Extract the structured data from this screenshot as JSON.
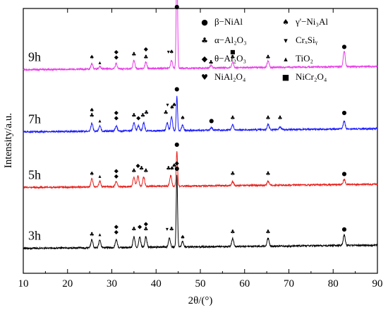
{
  "chart_data": {
    "type": "line",
    "xlabel": "2θ/(°)",
    "ylabel": "Intensity/a.u.",
    "xlim": [
      10,
      90
    ],
    "xticks": [
      "10",
      "20",
      "30",
      "40",
      "50",
      "60",
      "70",
      "80",
      "90"
    ],
    "y_ticks_shown": false,
    "grid": false,
    "legend_position": "top-right",
    "legend": [
      {
        "symbol": "●",
        "label": "β−NiAl"
      },
      {
        "symbol": "♠",
        "label": "γ'−Ni₃Al"
      },
      {
        "symbol": "♣",
        "label": "α−Al₂O₃"
      },
      {
        "symbol": "▾",
        "label": "CrₓSiᵧ"
      },
      {
        "symbol": "◆",
        "label": "θ−Al₂O₃"
      },
      {
        "symbol": "▴",
        "label": "TiO₂"
      },
      {
        "symbol": "♥",
        "label": "NiAl₂O₄"
      },
      {
        "symbol": "■",
        "label": "NiCr₂O₄"
      }
    ],
    "series": [
      {
        "name": "3h",
        "color": "#000000",
        "baseline": 0.1,
        "peaks": [
          [
            25.5,
            0.03
          ],
          [
            27.3,
            0.03
          ],
          [
            31.0,
            0.03
          ],
          [
            35.0,
            0.04
          ],
          [
            36.3,
            0.04
          ],
          [
            37.7,
            0.04
          ],
          [
            43.0,
            0.035
          ],
          [
            44.7,
            0.27
          ],
          [
            46.0,
            0.02
          ],
          [
            57.3,
            0.03
          ],
          [
            65.3,
            0.03
          ],
          [
            82.5,
            0.04
          ]
        ],
        "markers": [
          {
            "x": 25.5,
            "y": 0.14,
            "symbol": "♣"
          },
          {
            "x": 27.3,
            "y": 0.14,
            "symbol": "▴"
          },
          {
            "x": 31.0,
            "y": 0.15,
            "symbol": "◆"
          },
          {
            "x": 31.0,
            "y": 0.17,
            "symbol": "◆"
          },
          {
            "x": 35.0,
            "y": 0.16,
            "symbol": "♣"
          },
          {
            "x": 36.3,
            "y": 0.17,
            "symbol": "◆"
          },
          {
            "x": 37.7,
            "y": 0.16,
            "symbol": "♣"
          },
          {
            "x": 37.7,
            "y": 0.18,
            "symbol": "◆"
          },
          {
            "x": 42.5,
            "y": 0.16,
            "symbol": "▾"
          },
          {
            "x": 43.5,
            "y": 0.16,
            "symbol": "♣"
          },
          {
            "x": 44.7,
            "y": 0.39,
            "symbol": "●"
          },
          {
            "x": 44.7,
            "y": 0.41,
            "symbol": "◆"
          },
          {
            "x": 46.0,
            "y": 0.13,
            "symbol": "♠"
          },
          {
            "x": 57.3,
            "y": 0.15,
            "symbol": "♣"
          },
          {
            "x": 65.3,
            "y": 0.15,
            "symbol": "♣"
          },
          {
            "x": 82.5,
            "y": 0.16,
            "symbol": "●"
          }
        ]
      },
      {
        "name": "5h",
        "color": "#e8201c",
        "baseline": 0.33,
        "peaks": [
          [
            25.5,
            0.03
          ],
          [
            27.3,
            0.02
          ],
          [
            31.0,
            0.02
          ],
          [
            35.0,
            0.035
          ],
          [
            35.9,
            0.04
          ],
          [
            37.2,
            0.035
          ],
          [
            43.3,
            0.04
          ],
          [
            44.7,
            0.13
          ],
          [
            57.3,
            0.015
          ],
          [
            65.3,
            0.015
          ],
          [
            82.5,
            0.02
          ]
        ],
        "markers": [
          {
            "x": 25.5,
            "y": 0.37,
            "symbol": "♠"
          },
          {
            "x": 27.3,
            "y": 0.36,
            "symbol": "▴"
          },
          {
            "x": 31.0,
            "y": 0.36,
            "symbol": "◆"
          },
          {
            "x": 31.0,
            "y": 0.38,
            "symbol": "◆"
          },
          {
            "x": 35.0,
            "y": 0.38,
            "symbol": "♣"
          },
          {
            "x": 35.9,
            "y": 0.4,
            "symbol": "◆"
          },
          {
            "x": 36.7,
            "y": 0.39,
            "symbol": "♣"
          },
          {
            "x": 37.7,
            "y": 0.38,
            "symbol": "♣"
          },
          {
            "x": 42.8,
            "y": 0.39,
            "symbol": "♣"
          },
          {
            "x": 43.6,
            "y": 0.39,
            "symbol": "♠"
          },
          {
            "x": 44.1,
            "y": 0.4,
            "symbol": "♠"
          },
          {
            "x": 44.7,
            "y": 0.48,
            "symbol": "●"
          },
          {
            "x": 57.3,
            "y": 0.37,
            "symbol": "♣"
          },
          {
            "x": 65.3,
            "y": 0.37,
            "symbol": "♣"
          },
          {
            "x": 82.5,
            "y": 0.37,
            "symbol": "●"
          }
        ]
      },
      {
        "name": "7h",
        "color": "#1a1aff",
        "baseline": 0.54,
        "peaks": [
          [
            25.5,
            0.03
          ],
          [
            27.3,
            0.02
          ],
          [
            31.0,
            0.02
          ],
          [
            35.0,
            0.03
          ],
          [
            36.0,
            0.02
          ],
          [
            37.2,
            0.03
          ],
          [
            42.5,
            0.03
          ],
          [
            43.5,
            0.05
          ],
          [
            44.7,
            0.13
          ],
          [
            46.0,
            0.02
          ],
          [
            52.5,
            0.01
          ],
          [
            57.3,
            0.02
          ],
          [
            65.3,
            0.02
          ],
          [
            68.0,
            0.01
          ],
          [
            82.5,
            0.03
          ]
        ],
        "markers": [
          {
            "x": 25.5,
            "y": 0.59,
            "symbol": "♣"
          },
          {
            "x": 25.5,
            "y": 0.61,
            "symbol": "♠"
          },
          {
            "x": 27.3,
            "y": 0.57,
            "symbol": "▴"
          },
          {
            "x": 31.0,
            "y": 0.58,
            "symbol": "◆"
          },
          {
            "x": 31.0,
            "y": 0.6,
            "symbol": "◆"
          },
          {
            "x": 35.0,
            "y": 0.59,
            "symbol": "♣"
          },
          {
            "x": 36.0,
            "y": 0.58,
            "symbol": "◆"
          },
          {
            "x": 37.0,
            "y": 0.59,
            "symbol": "♣"
          },
          {
            "x": 37.8,
            "y": 0.6,
            "symbol": "♣"
          },
          {
            "x": 42.2,
            "y": 0.6,
            "symbol": "♣"
          },
          {
            "x": 42.6,
            "y": 0.63,
            "symbol": "▾"
          },
          {
            "x": 43.6,
            "y": 0.62,
            "symbol": "♠"
          },
          {
            "x": 44.1,
            "y": 0.63,
            "symbol": "♠"
          },
          {
            "x": 44.7,
            "y": 0.69,
            "symbol": "●"
          },
          {
            "x": 46.0,
            "y": 0.58,
            "symbol": "♠"
          },
          {
            "x": 52.5,
            "y": 0.57,
            "symbol": "●"
          },
          {
            "x": 57.3,
            "y": 0.58,
            "symbol": "♣"
          },
          {
            "x": 65.3,
            "y": 0.58,
            "symbol": "♣"
          },
          {
            "x": 68.0,
            "y": 0.58,
            "symbol": "♣"
          },
          {
            "x": 82.5,
            "y": 0.6,
            "symbol": "●"
          }
        ]
      },
      {
        "name": "9h",
        "color": "#e83ee8",
        "baseline": 0.775,
        "peaks": [
          [
            25.5,
            0.02
          ],
          [
            27.3,
            0.01
          ],
          [
            31.0,
            0.02
          ],
          [
            35.0,
            0.03
          ],
          [
            37.7,
            0.025
          ],
          [
            43.5,
            0.03
          ],
          [
            44.7,
            0.42
          ],
          [
            52.4,
            0.01
          ],
          [
            57.3,
            0.02
          ],
          [
            65.3,
            0.025
          ],
          [
            82.5,
            0.06
          ]
        ],
        "markers": [
          {
            "x": 25.5,
            "y": 0.81,
            "symbol": "♠"
          },
          {
            "x": 27.3,
            "y": 0.79,
            "symbol": "▴"
          },
          {
            "x": 31.0,
            "y": 0.81,
            "symbol": "◆"
          },
          {
            "x": 31.0,
            "y": 0.83,
            "symbol": "◆"
          },
          {
            "x": 35.0,
            "y": 0.82,
            "symbol": "♣"
          },
          {
            "x": 37.7,
            "y": 0.81,
            "symbol": "♣"
          },
          {
            "x": 37.7,
            "y": 0.84,
            "symbol": "◆"
          },
          {
            "x": 42.8,
            "y": 0.83,
            "symbol": "▾"
          },
          {
            "x": 43.5,
            "y": 0.83,
            "symbol": "♠"
          },
          {
            "x": 44.7,
            "y": 1.0,
            "symbol": "●"
          },
          {
            "x": 52.4,
            "y": 0.79,
            "symbol": "♣"
          },
          {
            "x": 57.3,
            "y": 0.81,
            "symbol": "♣"
          },
          {
            "x": 57.3,
            "y": 0.83,
            "symbol": "■"
          },
          {
            "x": 65.3,
            "y": 0.81,
            "symbol": "♣"
          },
          {
            "x": 82.5,
            "y": 0.85,
            "symbol": "●"
          }
        ]
      }
    ]
  }
}
